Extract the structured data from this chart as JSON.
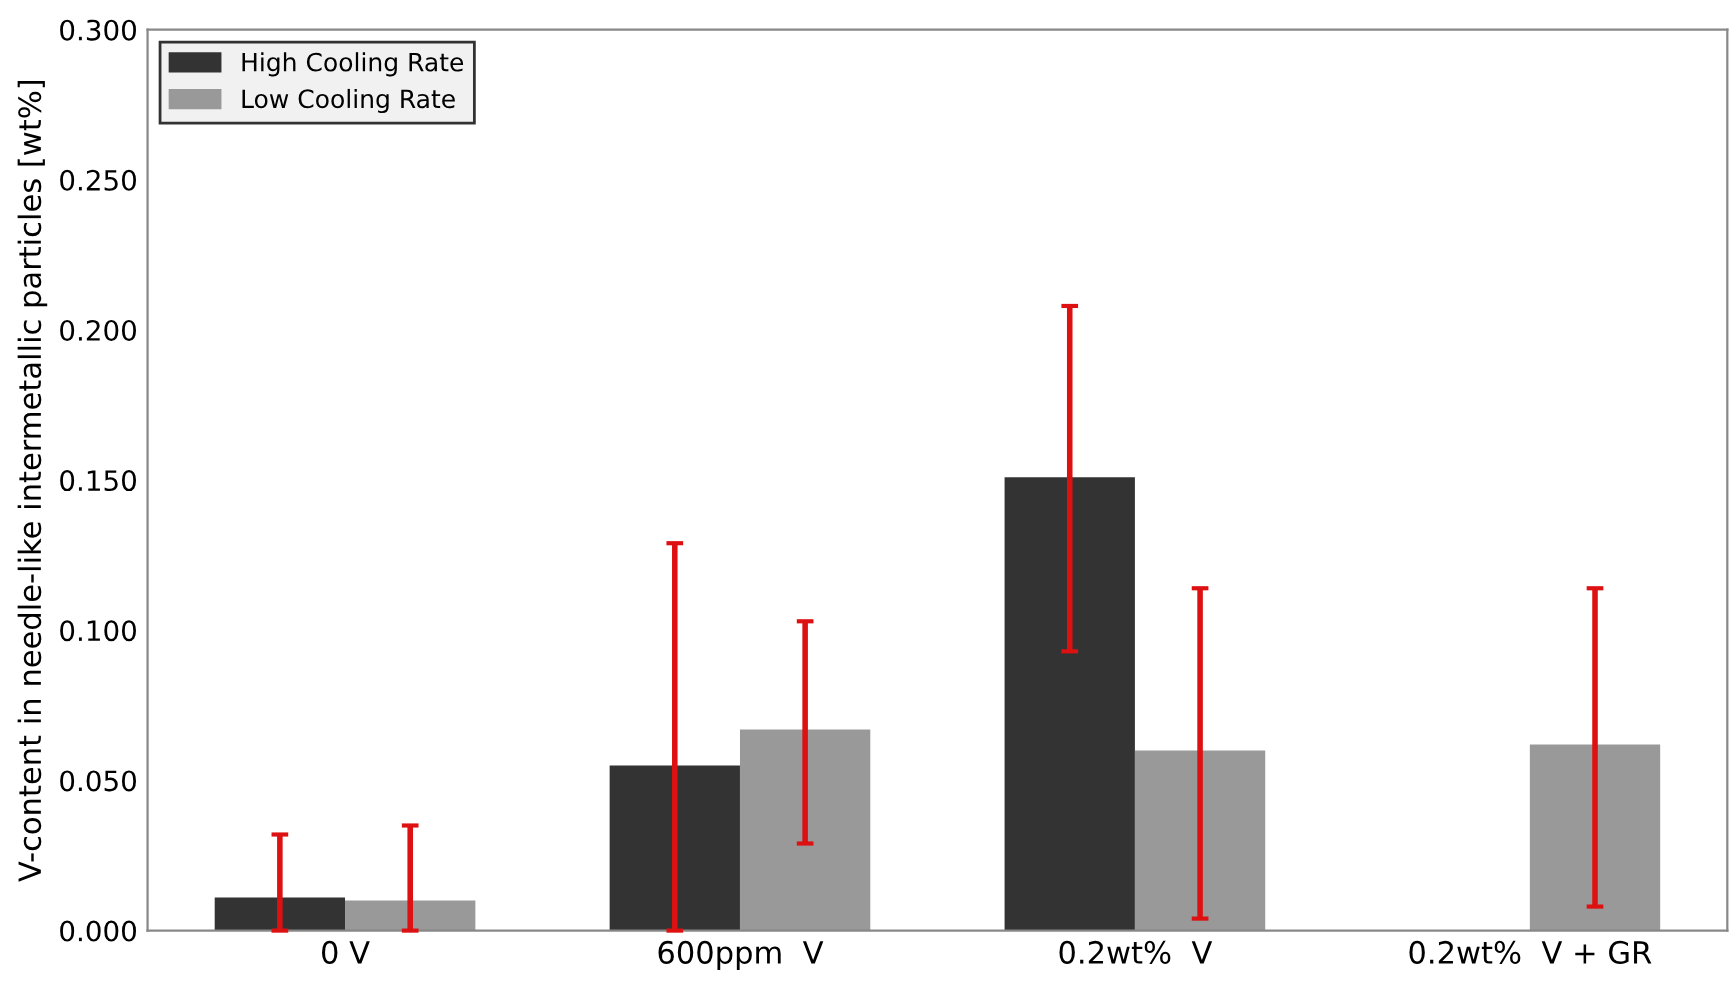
{
  "chart_data": {
    "type": "bar",
    "ylabel": "V-content in needle-like intermetallic particles [wt%]",
    "categories": [
      "0 V",
      "600ppm  V",
      "0.2wt%  V",
      "0.2wt%  V + GR"
    ],
    "series": [
      {
        "name": "High Cooling Rate",
        "color": "#333333",
        "values": [
          0.011,
          0.055,
          0.151,
          null
        ],
        "errors": [
          [
            0,
            0.032
          ],
          [
            0,
            0.129
          ],
          [
            0.093,
            0.208
          ],
          null
        ]
      },
      {
        "name": "Low Cooling Rate",
        "color": "#999999",
        "values": [
          0.01,
          0.067,
          0.06,
          0.062
        ],
        "errors": [
          [
            0,
            0.035
          ],
          [
            0.029,
            0.103
          ],
          [
            0.004,
            0.114
          ],
          [
            0.008,
            0.114
          ]
        ]
      }
    ],
    "ylim": [
      0,
      0.3
    ],
    "yticks": [
      {
        "value": 0,
        "label": "0.000"
      },
      {
        "value": 0.05,
        "label": "0.050"
      },
      {
        "value": 0.1,
        "label": "0.100"
      },
      {
        "value": 0.15,
        "label": "0.150"
      },
      {
        "value": 0.2,
        "label": "0.200"
      },
      {
        "value": 0.25,
        "label": "0.250"
      },
      {
        "value": 0.3,
        "label": "0.300"
      }
    ],
    "grid": false,
    "legend": "top left"
  }
}
